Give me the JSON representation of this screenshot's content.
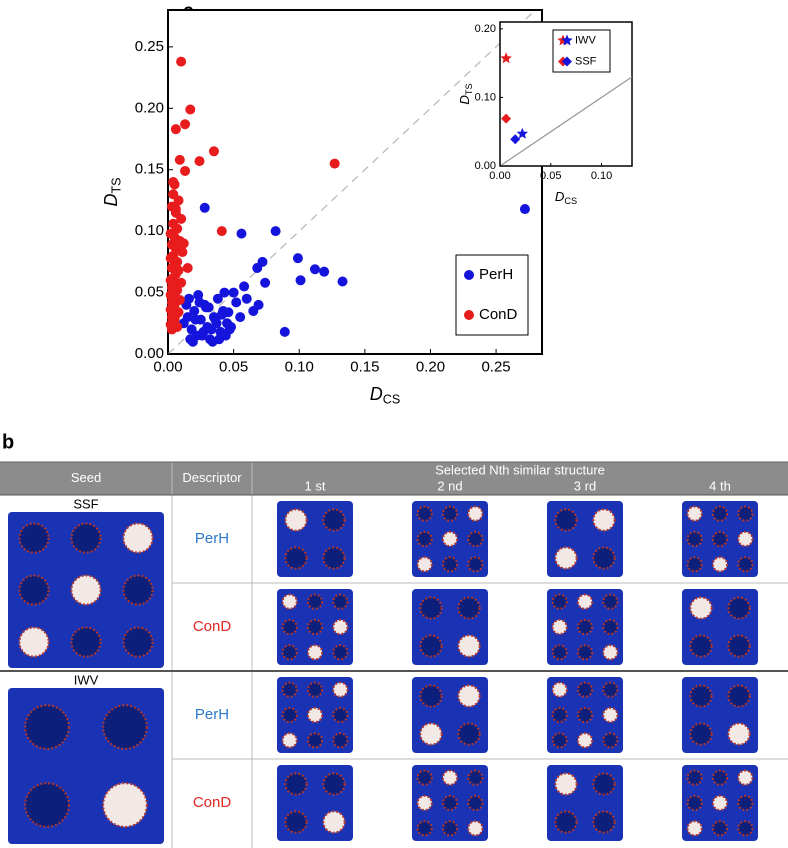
{
  "panel_a_label": "a",
  "chart_data": [
    {
      "type": "scatter",
      "xlabel": {
        "text": "D",
        "sub": "CS"
      },
      "ylabel": {
        "text": "D",
        "sub": "TS"
      },
      "xlim": [
        0,
        0.285
      ],
      "ylim": [
        0,
        0.28
      ],
      "xticks": [
        {
          "value": 0,
          "label": "0.00"
        },
        {
          "value": 0.05,
          "label": "0.05"
        },
        {
          "value": 0.1,
          "label": "0.10"
        },
        {
          "value": 0.15,
          "label": "0.15"
        },
        {
          "value": 0.2,
          "label": "0.20"
        },
        {
          "value": 0.25,
          "label": "0.25"
        }
      ],
      "yticks": [
        {
          "value": 0,
          "label": "0.00"
        },
        {
          "value": 0.05,
          "label": "0.05"
        },
        {
          "value": 0.1,
          "label": "0.10"
        },
        {
          "value": 0.15,
          "label": "0.15"
        },
        {
          "value": 0.2,
          "label": "0.20"
        },
        {
          "value": 0.25,
          "label": "0.25"
        }
      ],
      "diagonal": "dashed",
      "legend": "lower right",
      "marker": "circle",
      "series": [
        {
          "name": "PerH",
          "color": "#1414dc",
          "x": [
            0.028,
            0.056,
            0.082,
            0.099,
            0.072,
            0.068,
            0.112,
            0.119,
            0.133,
            0.101,
            0.074,
            0.069,
            0.089,
            0.046,
            0.272,
            0.012,
            0.015,
            0.018,
            0.02,
            0.022,
            0.025,
            0.028,
            0.03,
            0.032,
            0.035,
            0.038,
            0.04,
            0.042,
            0.045,
            0.05,
            0.055,
            0.06,
            0.014,
            0.017,
            0.021,
            0.024,
            0.027,
            0.031,
            0.034,
            0.037,
            0.041,
            0.044,
            0.048,
            0.052,
            0.016,
            0.019,
            0.023,
            0.026,
            0.029,
            0.033,
            0.036,
            0.039,
            0.043,
            0.047,
            0.065,
            0.058
          ],
          "y": [
            0.119,
            0.098,
            0.1,
            0.078,
            0.075,
            0.07,
            0.069,
            0.067,
            0.059,
            0.06,
            0.058,
            0.04,
            0.018,
            0.034,
            0.118,
            0.025,
            0.03,
            0.02,
            0.035,
            0.015,
            0.028,
            0.04,
            0.022,
            0.012,
            0.03,
            0.045,
            0.018,
            0.035,
            0.025,
            0.05,
            0.03,
            0.045,
            0.04,
            0.012,
            0.028,
            0.042,
            0.018,
            0.038,
            0.01,
            0.025,
            0.032,
            0.015,
            0.022,
            0.042,
            0.045,
            0.01,
            0.048,
            0.015,
            0.038,
            0.02,
            0.028,
            0.012,
            0.05,
            0.02,
            0.035,
            0.055
          ]
        },
        {
          "name": "ConD",
          "color": "#e81c1c",
          "x": [
            0.01,
            0.017,
            0.013,
            0.006,
            0.035,
            0.009,
            0.024,
            0.005,
            0.013,
            0.127,
            0.041,
            0.004,
            0.008,
            0.003,
            0.006,
            0.01,
            0.004,
            0.007,
            0.002,
            0.005,
            0.009,
            0.003,
            0.006,
            0.011,
            0.004,
            0.002,
            0.007,
            0.005,
            0.003,
            0.008,
            0.006,
            0.004,
            0.002,
            0.01,
            0.005,
            0.003,
            0.007,
            0.004,
            0.002,
            0.006,
            0.009,
            0.003,
            0.005,
            0.004,
            0.002,
            0.008,
            0.006,
            0.003,
            0.005,
            0.004,
            0.002,
            0.007,
            0.003,
            0.012,
            0.015,
            0.006,
            0.004
          ],
          "y": [
            0.238,
            0.199,
            0.187,
            0.183,
            0.165,
            0.158,
            0.157,
            0.138,
            0.149,
            0.155,
            0.1,
            0.13,
            0.125,
            0.12,
            0.115,
            0.11,
            0.106,
            0.102,
            0.098,
            0.095,
            0.092,
            0.089,
            0.086,
            0.083,
            0.08,
            0.078,
            0.075,
            0.072,
            0.07,
            0.068,
            0.065,
            0.062,
            0.06,
            0.058,
            0.056,
            0.054,
            0.052,
            0.05,
            0.048,
            0.046,
            0.044,
            0.042,
            0.04,
            0.038,
            0.036,
            0.034,
            0.032,
            0.03,
            0.028,
            0.026,
            0.024,
            0.022,
            0.02,
            0.09,
            0.07,
            0.118,
            0.14
          ]
        }
      ]
    },
    {
      "type": "scatter",
      "xlabel": {
        "text": "D",
        "sub": "CS"
      },
      "ylabel": {
        "text": "D",
        "sub": "TS"
      },
      "xlim": [
        0,
        0.13
      ],
      "ylim": [
        0,
        0.21
      ],
      "xticks": [
        {
          "value": 0,
          "label": "0.00"
        },
        {
          "value": 0.05,
          "label": "0.05"
        },
        {
          "value": 0.1,
          "label": "0.10"
        }
      ],
      "yticks": [
        {
          "value": 0,
          "label": "0.00"
        },
        {
          "value": 0.1,
          "label": "0.10"
        },
        {
          "value": 0.2,
          "label": "0.20"
        }
      ],
      "diagonal": "solid",
      "legend": "upper right",
      "series": [
        {
          "name": "IWV",
          "marker": "star",
          "colors": [
            "#e81c1c",
            "#1414dc"
          ],
          "x": [
            0.006,
            0.022
          ],
          "y": [
            0.157,
            0.047
          ]
        },
        {
          "name": "SSF",
          "marker": "diamond",
          "colors": [
            "#e81c1c",
            "#1414dc"
          ],
          "x": [
            0.006,
            0.015
          ],
          "y": [
            0.069,
            0.039
          ]
        }
      ]
    }
  ],
  "panel_b_label": "b",
  "table": {
    "headers": [
      "Seed",
      "Descriptor",
      "Selected Nth similar structure"
    ],
    "columns": [
      "1 st",
      "2 nd",
      "3 rd",
      "4 th"
    ],
    "groups": [
      {
        "seed": "SSF",
        "rows": [
          {
            "label": "PerH",
            "color": "#2a78c8"
          },
          {
            "label": "ConD",
            "color": "#e3261f"
          }
        ]
      },
      {
        "seed": "IWV",
        "rows": [
          {
            "label": "PerH",
            "color": "#2a78c8"
          },
          {
            "label": "ConD",
            "color": "#e3261f"
          }
        ]
      }
    ]
  }
}
